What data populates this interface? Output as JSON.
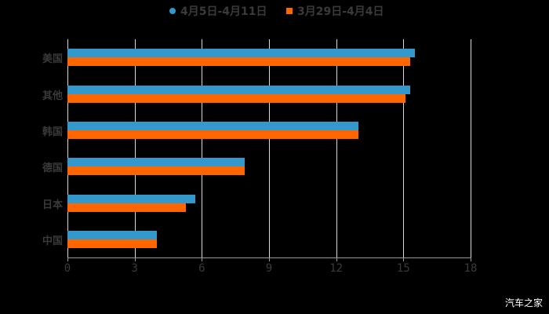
{
  "legend": {
    "series1": {
      "label": "4月5日-4月11日",
      "color": "#3399cc"
    },
    "series2": {
      "label": "3月29日-4月4日",
      "color": "#ff6600"
    }
  },
  "watermark": "汽车之家",
  "chart_data": {
    "type": "bar",
    "orientation": "horizontal",
    "title": "",
    "xlabel": "",
    "ylabel": "",
    "categories": [
      "美国",
      "其他",
      "韩国",
      "德国",
      "日本",
      "中国"
    ],
    "series": [
      {
        "name": "4月5日-4月11日",
        "color": "#3399cc",
        "values": [
          15.5,
          15.3,
          13.0,
          7.9,
          5.7,
          4.0
        ]
      },
      {
        "name": "3月29日-4月4日",
        "color": "#ff6600",
        "values": [
          15.3,
          15.1,
          13.0,
          7.9,
          5.3,
          4.0
        ]
      }
    ],
    "xlim": [
      0,
      18
    ],
    "xticks": [
      "0",
      "3",
      "6",
      "9",
      "12",
      "15",
      "18"
    ],
    "grid": true,
    "legend_position": "top"
  }
}
